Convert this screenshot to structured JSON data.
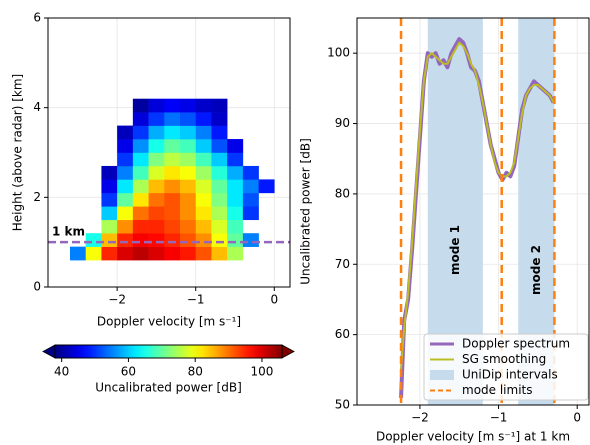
{
  "chart_data": [
    {
      "type": "heatmap",
      "xlabel": "Doppler velocity [m s⁻¹]",
      "ylabel": "Height (above radar) [km]",
      "xlim": [
        -2.88,
        0.2
      ],
      "ylim": [
        0,
        6
      ],
      "xticks": [
        {
          "value": -2,
          "label": "−2"
        },
        {
          "value": -1,
          "label": "−1"
        },
        0
      ],
      "yticks": [
        0,
        2,
        4,
        6
      ],
      "grid": true,
      "colormap": "jet",
      "x_bins": [
        -2.6,
        -2.4,
        -2.2,
        -2.0,
        -1.8,
        -1.6,
        -1.4,
        -1.2,
        -1.0,
        -0.8,
        -0.6,
        -0.4,
        -0.2,
        0.0
      ],
      "y_bins": [
        0.6,
        0.9,
        1.2,
        1.5,
        1.8,
        2.1,
        2.4,
        2.7,
        3.0,
        3.3,
        3.6,
        3.9,
        4.2
      ],
      "values": [
        [
          55,
          80,
          95,
          100,
          102,
          100,
          98,
          96,
          92,
          85,
          75,
          null,
          null
        ],
        [
          null,
          65,
          85,
          95,
          98,
          97,
          95,
          92,
          88,
          80,
          70,
          55,
          null
        ],
        [
          null,
          null,
          75,
          88,
          95,
          95,
          93,
          90,
          85,
          78,
          68,
          null,
          null
        ],
        [
          null,
          null,
          60,
          80,
          90,
          93,
          92,
          88,
          82,
          75,
          65,
          50,
          null
        ],
        [
          null,
          null,
          50,
          70,
          82,
          90,
          92,
          88,
          80,
          72,
          62,
          52,
          null
        ],
        [
          null,
          null,
          45,
          62,
          75,
          85,
          88,
          85,
          78,
          70,
          62,
          55,
          48
        ],
        [
          null,
          null,
          42,
          55,
          68,
          78,
          82,
          80,
          74,
          66,
          58,
          50,
          null
        ],
        [
          null,
          null,
          null,
          50,
          62,
          72,
          76,
          74,
          68,
          60,
          50,
          null,
          null
        ],
        [
          null,
          null,
          null,
          45,
          56,
          65,
          70,
          68,
          60,
          52,
          45,
          null,
          null
        ],
        [
          null,
          null,
          null,
          42,
          50,
          58,
          62,
          60,
          55,
          48,
          null,
          null,
          null
        ],
        [
          null,
          null,
          null,
          null,
          44,
          50,
          54,
          52,
          48,
          43,
          null,
          null,
          null
        ],
        [
          null,
          null,
          null,
          null,
          40,
          44,
          46,
          45,
          43,
          42,
          null,
          null,
          null
        ]
      ],
      "reference_line": {
        "y": 1,
        "label": "1 km",
        "color": "#9467bd"
      },
      "colorbar": {
        "label": "Uncalibrated power [dB]",
        "lim": [
          38,
          106
        ],
        "ticks": [
          40,
          60,
          80,
          100
        ]
      }
    },
    {
      "type": "line",
      "xlabel": "Doppler velocity [m s⁻¹] at 1 km",
      "ylabel": "Uncalibrated power [dB]",
      "xlim": [
        -2.8,
        0.15
      ],
      "ylim": [
        50,
        105
      ],
      "xticks": [
        {
          "value": -2,
          "label": "−2"
        },
        {
          "value": -1,
          "label": "−1"
        },
        0
      ],
      "yticks": [
        50,
        60,
        70,
        80,
        90,
        100
      ],
      "grid": true,
      "legend": "lower right",
      "x": [
        -2.24,
        -2.2,
        -2.15,
        -2.1,
        -2.05,
        -2.0,
        -1.95,
        -1.9,
        -1.85,
        -1.8,
        -1.75,
        -1.7,
        -1.65,
        -1.6,
        -1.55,
        -1.5,
        -1.45,
        -1.4,
        -1.35,
        -1.3,
        -1.25,
        -1.2,
        -1.15,
        -1.1,
        -1.05,
        -1.0,
        -0.95,
        -0.9,
        -0.85,
        -0.8,
        -0.75,
        -0.7,
        -0.65,
        -0.6,
        -0.55,
        -0.5,
        -0.45,
        -0.4,
        -0.35,
        -0.3
      ],
      "series": [
        {
          "name": "Doppler spectrum",
          "color": "#9467bd",
          "values": [
            51,
            62,
            65,
            72,
            80,
            88,
            96,
            100,
            99.5,
            100,
            98.5,
            99,
            98,
            100,
            101,
            102,
            101.5,
            100,
            98,
            97.5,
            96,
            93,
            90,
            87,
            85,
            83,
            82,
            83,
            82.5,
            84,
            88,
            92,
            94,
            95,
            96,
            95.5,
            95,
            94.5,
            94,
            93
          ]
        },
        {
          "name": "SG smoothing",
          "color": "#bcbd22",
          "values": [
            55,
            61,
            66,
            73,
            81,
            89,
            96,
            99.5,
            100,
            99.5,
            99,
            98.5,
            98.5,
            99.5,
            100.5,
            101.5,
            101,
            100,
            98.5,
            97.5,
            95.5,
            93,
            90,
            87,
            84.5,
            83,
            82.5,
            82.5,
            83,
            84.5,
            88,
            91.5,
            94,
            95,
            95.5,
            95.5,
            95,
            94.5,
            94,
            93
          ]
        }
      ],
      "intervals": {
        "name": "UniDip intervals",
        "color": "#c6dcec",
        "ranges": [
          [
            -1.9,
            -1.2
          ],
          [
            -0.75,
            -0.29
          ]
        ],
        "labels": [
          "mode 1",
          "mode 2"
        ]
      },
      "mode_limits": {
        "name": "mode limits",
        "color": "#ff7f0e",
        "values": [
          -2.24,
          -0.96,
          -0.29
        ]
      }
    }
  ]
}
